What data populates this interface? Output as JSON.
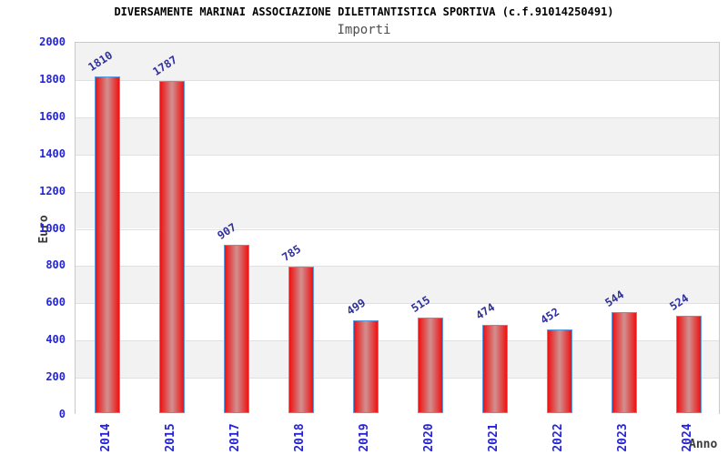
{
  "header": {
    "title": "DIVERSAMENTE MARINAI ASSOCIAZIONE DILETTANTISTICA SPORTIVA (c.f.91014250491)",
    "subtitle": "Importi"
  },
  "chart_data": {
    "type": "bar",
    "title": "DIVERSAMENTE MARINAI ASSOCIAZIONE DILETTANTISTICA SPORTIVA (c.f.91014250491)",
    "subtitle": "Importi",
    "categories": [
      "2014",
      "2015",
      "2017",
      "2018",
      "2019",
      "2020",
      "2021",
      "2022",
      "2023",
      "2024"
    ],
    "values": [
      1810,
      1787,
      907,
      785,
      499,
      515,
      474,
      452,
      544,
      524
    ],
    "xlabel": "Anno",
    "ylabel": "Euro",
    "ylim": [
      0,
      2000
    ],
    "ytick_step": 200,
    "yticks": [
      0,
      200,
      400,
      600,
      800,
      1000,
      1200,
      1400,
      1600,
      1800,
      2000
    ],
    "grid": true,
    "legend": "none",
    "bar_value_labels": true,
    "value_label_rotation_deg": -33,
    "x_tick_rotation_deg": -90,
    "band_fill_alternating": true,
    "colors": {
      "bar_fill_edge": "#ee1111",
      "bar_fill_center": "#d09090",
      "bar_border": "#5b9be0",
      "tick_label": "#2424d8",
      "value_label": "#30309c",
      "band_gray": "#f2f2f2",
      "band_white": "#ffffff",
      "grid_line": "#e0e0e0",
      "plot_border": "#c9c9c9",
      "title": "#000000",
      "subtitle": "#4d4d4d",
      "axis_title": "#3a3a3a"
    }
  }
}
